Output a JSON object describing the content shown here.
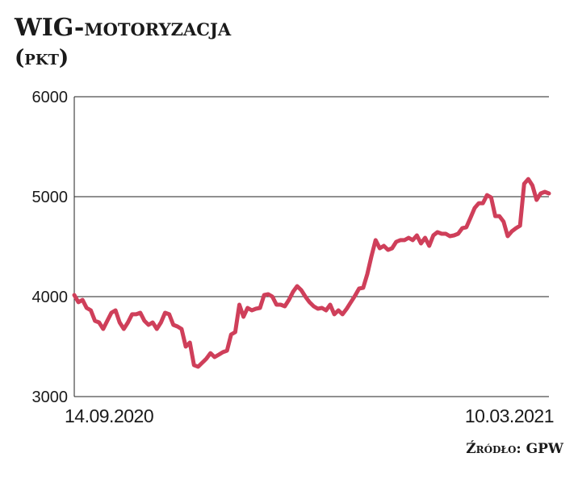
{
  "chart_data": {
    "type": "line",
    "title": "WIG-motoryzacja",
    "subtitle": "(pkt)",
    "source": "Źródło: GPW",
    "categories": [
      "14.09.2020",
      null,
      null,
      null,
      null,
      null,
      null,
      null,
      null,
      null,
      null,
      null,
      null,
      null,
      null,
      null,
      null,
      null,
      null,
      null,
      null,
      null,
      null,
      null,
      null,
      null,
      null,
      null,
      null,
      null,
      null,
      null,
      null,
      null,
      null,
      null,
      null,
      null,
      null,
      null,
      null,
      null,
      null,
      null,
      null,
      null,
      null,
      null,
      null,
      null,
      null,
      null,
      null,
      null,
      null,
      null,
      null,
      null,
      null,
      null,
      null,
      null,
      null,
      null,
      null,
      null,
      null,
      null,
      null,
      null,
      null,
      null,
      null,
      null,
      null,
      null,
      null,
      null,
      null,
      null,
      null,
      null,
      null,
      null,
      null,
      null,
      null,
      null,
      null,
      null,
      null,
      null,
      null,
      null,
      null,
      null,
      null,
      null,
      null,
      null,
      null,
      null,
      null,
      null,
      null,
      null,
      null,
      null,
      null,
      null,
      null,
      null,
      null,
      null,
      null,
      "10.03.2021"
    ],
    "values": [
      4016,
      3944,
      3968,
      3887,
      3863,
      3758,
      3742,
      3677,
      3758,
      3839,
      3863,
      3742,
      3677,
      3742,
      3823,
      3823,
      3839,
      3758,
      3718,
      3742,
      3677,
      3742,
      3839,
      3823,
      3718,
      3702,
      3677,
      3500,
      3540,
      3315,
      3298,
      3339,
      3379,
      3435,
      3395,
      3419,
      3444,
      3460,
      3621,
      3645,
      3919,
      3798,
      3887,
      3863,
      3879,
      3887,
      4016,
      4024,
      4000,
      3919,
      3919,
      3903,
      3968,
      4048,
      4105,
      4065,
      4000,
      3944,
      3903,
      3879,
      3887,
      3863,
      3919,
      3823,
      3863,
      3823,
      3879,
      3944,
      4008,
      4081,
      4089,
      4226,
      4403,
      4565,
      4484,
      4508,
      4468,
      4484,
      4548,
      4565,
      4565,
      4589,
      4565,
      4613,
      4532,
      4589,
      4508,
      4613,
      4645,
      4629,
      4629,
      4605,
      4613,
      4629,
      4685,
      4694,
      4790,
      4887,
      4935,
      4935,
      5016,
      4992,
      4806,
      4806,
      4750,
      4605,
      4653,
      4685,
      4710,
      5129,
      5177,
      5113,
      4968,
      5032,
      5048,
      5032
    ],
    "color": "#cf3f5a",
    "ylim": [
      3000,
      6000
    ],
    "yticks": [
      3000,
      4000,
      5000,
      6000
    ],
    "grid": true
  }
}
